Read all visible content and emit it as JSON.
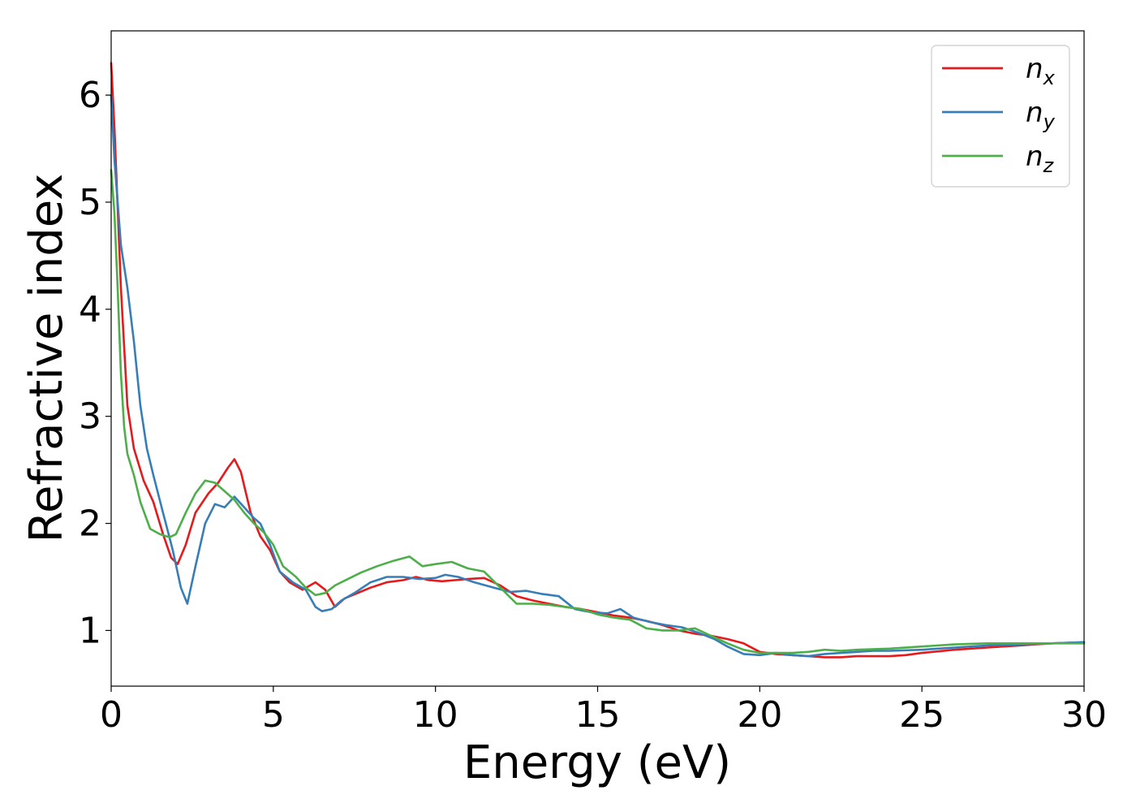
{
  "chart_data": {
    "type": "line",
    "title": "",
    "xlabel": "Energy (eV)",
    "ylabel": "Refractive index",
    "xlim": [
      0,
      30
    ],
    "ylim": [
      0.48,
      6.6
    ],
    "xticks": [
      0,
      5,
      10,
      15,
      20,
      25,
      30
    ],
    "yticks": [
      1,
      2,
      3,
      4,
      5,
      6
    ],
    "grid": false,
    "legend_position": "top-right",
    "series": [
      {
        "name": "n_x",
        "label_main": "n",
        "label_sub": "x",
        "color": "#e41a1c",
        "x": [
          0,
          0.1,
          0.3,
          0.5,
          0.7,
          1.0,
          1.3,
          1.6,
          1.85,
          2.05,
          2.3,
          2.6,
          3.0,
          3.3,
          3.6,
          3.8,
          4.0,
          4.3,
          4.6,
          4.9,
          5.2,
          5.5,
          5.9,
          6.3,
          6.6,
          6.9,
          7.2,
          7.6,
          8.0,
          8.5,
          9.0,
          9.4,
          9.8,
          10.2,
          10.6,
          11.0,
          11.5,
          12.0,
          12.5,
          13.0,
          13.5,
          14.0,
          14.5,
          15.0,
          15.5,
          16.0,
          16.5,
          17.0,
          17.5,
          18.0,
          18.5,
          19.0,
          19.5,
          20.0,
          20.5,
          21.0,
          21.5,
          22.0,
          22.5,
          23.0,
          23.5,
          24.0,
          24.5,
          25.0,
          26.0,
          27.0,
          28.0,
          29.0,
          30.0
        ],
        "y": [
          6.3,
          5.7,
          4.2,
          3.1,
          2.7,
          2.4,
          2.2,
          1.9,
          1.68,
          1.62,
          1.8,
          2.1,
          2.28,
          2.38,
          2.52,
          2.6,
          2.48,
          2.1,
          1.88,
          1.75,
          1.55,
          1.45,
          1.38,
          1.45,
          1.38,
          1.22,
          1.3,
          1.35,
          1.4,
          1.45,
          1.47,
          1.5,
          1.47,
          1.46,
          1.47,
          1.48,
          1.49,
          1.42,
          1.32,
          1.28,
          1.25,
          1.22,
          1.2,
          1.17,
          1.14,
          1.12,
          1.09,
          1.05,
          1.0,
          0.97,
          0.95,
          0.92,
          0.88,
          0.8,
          0.78,
          0.77,
          0.76,
          0.75,
          0.75,
          0.76,
          0.76,
          0.76,
          0.77,
          0.79,
          0.82,
          0.84,
          0.86,
          0.88,
          0.89
        ]
      },
      {
        "name": "n_y",
        "label_main": "n",
        "label_sub": "y",
        "color": "#377eb8",
        "x": [
          0,
          0.1,
          0.3,
          0.5,
          0.7,
          0.9,
          1.1,
          1.3,
          1.6,
          1.9,
          2.15,
          2.35,
          2.6,
          2.9,
          3.2,
          3.5,
          3.8,
          4.1,
          4.4,
          4.6,
          4.9,
          5.2,
          5.6,
          6.0,
          6.3,
          6.5,
          6.8,
          7.1,
          7.5,
          8.0,
          8.5,
          9.0,
          9.5,
          10.0,
          10.3,
          10.7,
          11.2,
          11.8,
          12.3,
          12.8,
          13.3,
          13.8,
          14.3,
          14.8,
          15.3,
          15.7,
          16.1,
          16.6,
          17.1,
          17.6,
          18.1,
          18.6,
          19.0,
          19.5,
          20.0,
          20.5,
          21.0,
          21.5,
          22.0,
          22.5,
          23.0,
          23.5,
          24.0,
          25.0,
          26.0,
          27.0,
          28.0,
          29.0,
          30.0
        ],
        "y": [
          6.0,
          5.4,
          4.6,
          4.2,
          3.7,
          3.1,
          2.7,
          2.45,
          2.1,
          1.75,
          1.4,
          1.25,
          1.6,
          2.0,
          2.18,
          2.15,
          2.25,
          2.15,
          2.05,
          2.0,
          1.8,
          1.55,
          1.45,
          1.38,
          1.22,
          1.18,
          1.2,
          1.28,
          1.35,
          1.45,
          1.5,
          1.5,
          1.48,
          1.49,
          1.52,
          1.5,
          1.45,
          1.4,
          1.36,
          1.37,
          1.34,
          1.32,
          1.2,
          1.17,
          1.16,
          1.2,
          1.12,
          1.08,
          1.05,
          1.03,
          0.98,
          0.92,
          0.85,
          0.78,
          0.77,
          0.79,
          0.77,
          0.76,
          0.78,
          0.79,
          0.8,
          0.81,
          0.81,
          0.82,
          0.84,
          0.86,
          0.87,
          0.88,
          0.89
        ]
      },
      {
        "name": "n_z",
        "label_main": "n",
        "label_sub": "z",
        "color": "#4daf4a",
        "x": [
          0,
          0.1,
          0.2,
          0.3,
          0.4,
          0.5,
          0.7,
          0.9,
          1.2,
          1.5,
          1.8,
          2.0,
          2.3,
          2.6,
          2.9,
          3.2,
          3.5,
          3.8,
          4.1,
          4.4,
          4.7,
          5.0,
          5.3,
          5.7,
          6.0,
          6.3,
          6.6,
          6.9,
          7.3,
          7.7,
          8.2,
          8.7,
          9.2,
          9.6,
          10.0,
          10.5,
          11.0,
          11.5,
          12.0,
          12.5,
          13.0,
          13.5,
          14.0,
          14.5,
          15.0,
          15.5,
          16.0,
          16.5,
          17.0,
          17.5,
          18.0,
          18.5,
          19.0,
          19.5,
          20.0,
          20.5,
          21.0,
          21.5,
          22.0,
          22.5,
          23.0,
          24.0,
          25.0,
          26.0,
          27.0,
          28.0,
          29.0,
          30.0
        ],
        "y": [
          5.3,
          4.9,
          4.2,
          3.4,
          2.9,
          2.65,
          2.45,
          2.2,
          1.95,
          1.9,
          1.87,
          1.9,
          2.1,
          2.28,
          2.4,
          2.38,
          2.3,
          2.22,
          2.1,
          2.0,
          1.92,
          1.8,
          1.6,
          1.5,
          1.4,
          1.33,
          1.35,
          1.42,
          1.48,
          1.54,
          1.6,
          1.65,
          1.69,
          1.6,
          1.62,
          1.64,
          1.58,
          1.55,
          1.4,
          1.25,
          1.25,
          1.24,
          1.22,
          1.2,
          1.15,
          1.12,
          1.1,
          1.02,
          1.0,
          1.0,
          1.02,
          0.95,
          0.88,
          0.82,
          0.79,
          0.79,
          0.79,
          0.8,
          0.82,
          0.81,
          0.82,
          0.83,
          0.85,
          0.87,
          0.88,
          0.88,
          0.88,
          0.88
        ]
      }
    ]
  }
}
